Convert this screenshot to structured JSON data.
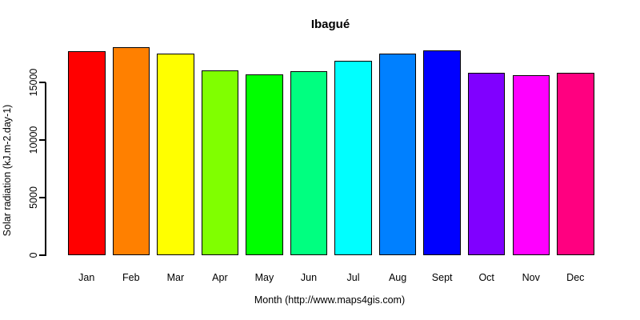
{
  "chart_data": {
    "type": "bar",
    "title": "Ibagué",
    "xlabel": "Month (http://www.maps4gis.com)",
    "ylabel": "Solar radiation (kJ.m-2.day-1)",
    "categories": [
      "Jan",
      "Feb",
      "Mar",
      "Apr",
      "May",
      "Jun",
      "Jul",
      "Aug",
      "Sept",
      "Oct",
      "Nov",
      "Dec"
    ],
    "values": [
      17700,
      18050,
      17500,
      16050,
      15700,
      16000,
      16900,
      17500,
      17800,
      15800,
      15600,
      15850
    ],
    "bar_colors": [
      "#FF0000",
      "#FF8000",
      "#FFFF00",
      "#80FF00",
      "#00FF00",
      "#00FF80",
      "#00FFFF",
      "#0080FF",
      "#0000FF",
      "#8000FF",
      "#FF00FF",
      "#FF0080"
    ],
    "bar_border_color": "#000000",
    "yticks": [
      0,
      5000,
      10000,
      15000
    ],
    "ytick_labels": [
      "0",
      "5000",
      "10000",
      "15000"
    ],
    "ylim": [
      0,
      15000
    ],
    "grid": false,
    "legend": null,
    "background_color": "#FFFFFF",
    "text_color": "#000000"
  }
}
